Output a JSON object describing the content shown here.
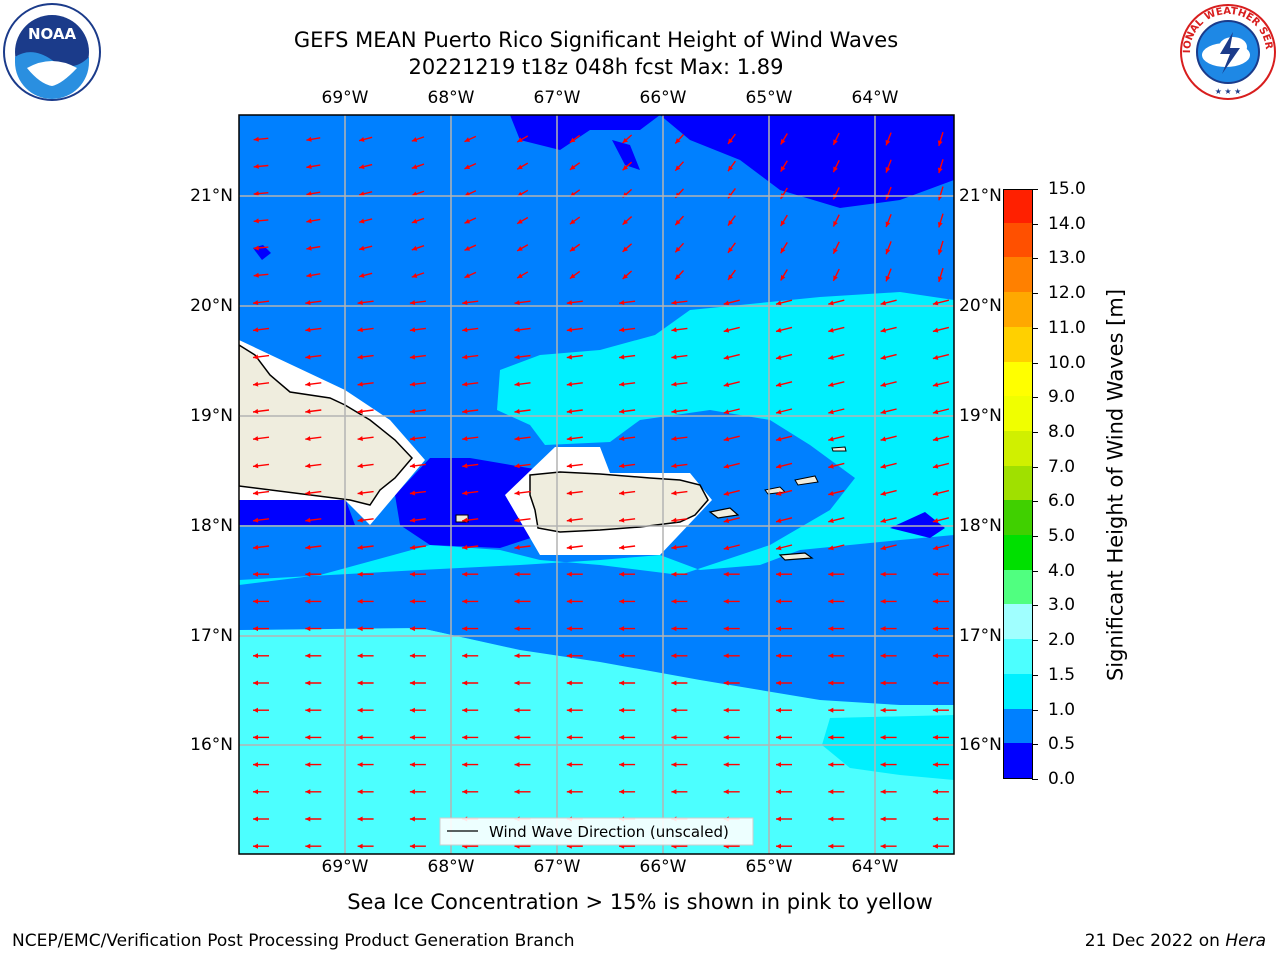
{
  "header": {
    "title_line1": "GEFS MEAN Puerto Rico Significant Height of Wind Waves",
    "title_line2": "20221219 t18z 048h fcst   Max: 1.89"
  },
  "logos": {
    "left": "NOAA",
    "right": "NATIONAL WEATHER SERVICE"
  },
  "map": {
    "lon_labels": [
      "69°W",
      "68°W",
      "67°W",
      "66°W",
      "65°W",
      "64°W"
    ],
    "lat_labels": [
      "21°N",
      "20°N",
      "19°N",
      "18°N",
      "17°N",
      "16°N"
    ],
    "legend_label": "Wind Wave Direction (unscaled)",
    "colors": {
      "land": "#efedde",
      "level_0_0.5": "#0000ff",
      "level_0.5_1.0": "#0080ff",
      "level_1.0_1.5": "#00f0ff",
      "level_1.5_2.0": "#4cffff",
      "arrow": "#ff0000"
    }
  },
  "colorbar": {
    "label": "Significant Height of Wind Waves [m]",
    "ticks": [
      "0.0",
      "0.5",
      "1.0",
      "1.5",
      "2.0",
      "3.0",
      "4.0",
      "5.0",
      "6.0",
      "7.0",
      "8.0",
      "9.0",
      "10.0",
      "11.0",
      "12.0",
      "13.0",
      "14.0",
      "15.0"
    ],
    "colors": [
      "#0000ff",
      "#0080ff",
      "#00f0ff",
      "#4cffff",
      "#a0ffff",
      "#50ff80",
      "#00e000",
      "#40d000",
      "#a0e000",
      "#d0f000",
      "#f0ff00",
      "#ffff00",
      "#ffd000",
      "#ffa800",
      "#ff8000",
      "#ff5000",
      "#ff2000",
      "#ff0000"
    ]
  },
  "footer": {
    "note": "Sea Ice Concentration > 15% is shown in pink to yellow",
    "branch": "NCEP/EMC/Verification Post Processing Product Generation Branch",
    "date": "21 Dec 2022 on ",
    "host": "Hera"
  }
}
